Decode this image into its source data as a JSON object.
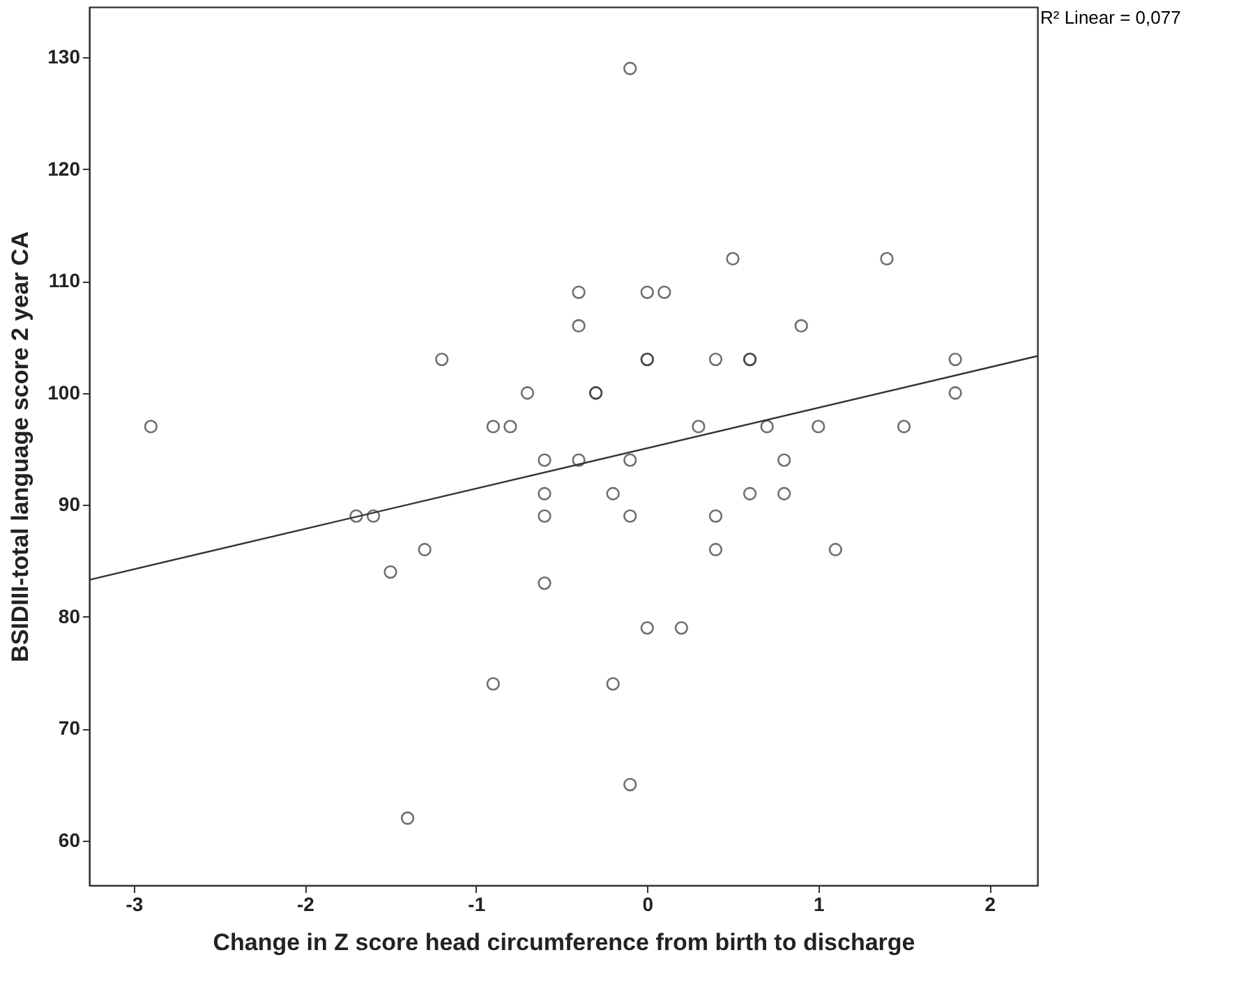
{
  "chart_data": {
    "type": "scatter",
    "xlabel": "Change in Z score head circumference from birth to discharge",
    "ylabel": "BSIDIII-total language score 2 year CA",
    "annotations": [
      "R² Linear = 0,077"
    ],
    "xlim": [
      -3.26,
      2.28
    ],
    "ylim": [
      56,
      134.5
    ],
    "xticks": [
      -3,
      -2,
      -1,
      0,
      1,
      2
    ],
    "yticks": [
      60,
      70,
      80,
      90,
      100,
      110,
      120,
      130
    ],
    "grid": false,
    "marker": "circle",
    "series": [
      {
        "color": "#333333",
        "x": [
          -2.9,
          -1.7,
          -1.6,
          -1.5,
          -1.4,
          -1.3,
          -1.2,
          -0.9,
          -0.8,
          -0.9,
          -0.7,
          -0.6,
          -0.6,
          -0.6,
          -0.6,
          -0.4,
          -0.4,
          -0.4,
          -0.3,
          -0.3,
          -0.2,
          -0.2,
          -0.1,
          -0.1,
          -0.1,
          -0.1,
          0,
          0,
          0,
          0,
          0.1,
          0.2,
          0.3,
          0.4,
          0.4,
          0.4,
          0.5,
          0.6,
          0.6,
          0.6,
          0.7,
          0.8,
          0.8,
          0.9,
          1.0,
          1.1,
          1.4,
          1.5,
          1.8,
          1.8
        ],
        "values": [
          97,
          89,
          89,
          84,
          62,
          86,
          103,
          97,
          97,
          74,
          100,
          94,
          91,
          89,
          83,
          109,
          106,
          94,
          100,
          100,
          91,
          74,
          129,
          94,
          89,
          65,
          109,
          103,
          103,
          79,
          109,
          79,
          97,
          103,
          89,
          86,
          112,
          103,
          103,
          91,
          97,
          94,
          91,
          106,
          97,
          86,
          112,
          97,
          103,
          100
        ]
      },
      {
        "type": "line",
        "marker": "none",
        "color": "#333333",
        "x": [
          -3.26,
          2.28
        ],
        "values": [
          83.3,
          103.3
        ]
      }
    ]
  }
}
